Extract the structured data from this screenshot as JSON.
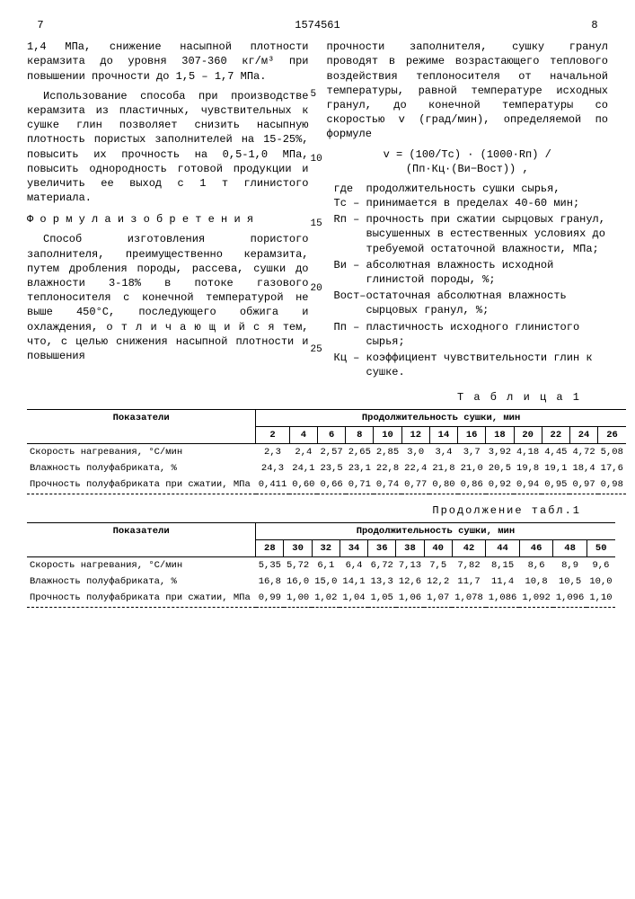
{
  "header": {
    "page_left": "7",
    "doc_number": "1574561",
    "page_right": "8"
  },
  "left_col": {
    "p1": "1,4 МПа, снижение насыпной плотности керамзита до уровня 307-360 кг/м³ при повышении прочности до 1,5 – 1,7 МПа.",
    "p2": "Использование способа при производстве керамзита из пластичных, чувствительных к сушке глин позволяет снизить насыпную плотность пористых заполнителей на 15-25%, повысить их прочность на 0,5-1,0 МПа, повысить однородность готовой продукции и увеличить ее выход с 1 т глинистого материала.",
    "formula_title": "Ф о р м у л а  и з о б р е т е н и я",
    "p3": "Способ изготовления пористого заполнителя, преимущественно керамзита, путем дробления породы, рассева, сушки до влажности 3-18% в потоке газового теплоносителя с конечной температурой не выше 450°С, последующего обжига и охлаждения, о т л и ч а ю щ и й с я  тем, что, с целью снижения насыпной плотности и повышения",
    "line_nums": [
      "5",
      "10",
      "15",
      "20",
      "25"
    ]
  },
  "right_col": {
    "p1": "прочности заполнителя, сушку гранул проводят в режиме возрастающего теплового воздействия теплоносителя от начальной температуры, равной температуре исходных гранул, до конечной температуры со скоростью v (град/мин), определяемой по формуле",
    "formula": "v = (100/Tс) · (1000·Rп) / (Пп·Кц·(Ви−Вост)) ,",
    "defs": [
      {
        "sym": "где Тс –",
        "txt": "продолжительность сушки сырья, принимается в пределах 40-60 мин;"
      },
      {
        "sym": "Rп –",
        "txt": "прочность при сжатии сырцовых гранул, высушенных в естественных условиях до требуемой остаточной влажности, МПа;"
      },
      {
        "sym": "Ви –",
        "txt": "абсолютная влажность исходной глинистой породы, %;"
      },
      {
        "sym": "Вост–",
        "txt": "остаточная абсолютная влажность сырцовых гранул, %;"
      },
      {
        "sym": "Пп –",
        "txt": "пластичность исходного глинистого сырья;"
      },
      {
        "sym": "Кц –",
        "txt": "коэффициент чувствительности глин к сушке."
      }
    ]
  },
  "table1": {
    "caption": "Т а б л и ц а 1",
    "header_main": "Продолжительность сушки, мин",
    "col_label": "Показатели",
    "cols": [
      "2",
      "4",
      "6",
      "8",
      "10",
      "12",
      "14",
      "16",
      "18",
      "20",
      "22",
      "24",
      "26"
    ],
    "rows": [
      {
        "label": "Скорость нагревания, °С/мин",
        "vals": [
          "2,3",
          "2,4",
          "2,57",
          "2,65",
          "2,85",
          "3,0",
          "3,4",
          "3,7",
          "3,92",
          "4,18",
          "4,45",
          "4,72",
          "5,08"
        ]
      },
      {
        "label": "Влажность полуфабриката, %",
        "vals": [
          "24,3",
          "24,1",
          "23,5",
          "23,1",
          "22,8",
          "22,4",
          "21,8",
          "21,0",
          "20,5",
          "19,8",
          "19,1",
          "18,4",
          "17,6"
        ]
      },
      {
        "label": "Прочность полуфабриката при сжатии, МПа",
        "vals": [
          "0,411",
          "0,60",
          "0,66",
          "0,71",
          "0,74",
          "0,77",
          "0,80",
          "0,86",
          "0,92",
          "0,94",
          "0,95",
          "0,97",
          "0,98"
        ]
      }
    ]
  },
  "table2": {
    "caption": "Продолжение табл.1",
    "header_main": "Продолжительность сушки, мин",
    "col_label": "Показатели",
    "cols": [
      "28",
      "30",
      "32",
      "34",
      "36",
      "38",
      "40",
      "42",
      "44",
      "46",
      "48",
      "50"
    ],
    "rows": [
      {
        "label": "Скорость нагревания, °С/мин",
        "vals": [
          "5,35",
          "5,72",
          "6,1",
          "6,4",
          "6,72",
          "7,13",
          "7,5",
          "7,82",
          "8,15",
          "8,6",
          "8,9",
          "9,6"
        ]
      },
      {
        "label": "Влажность полуфабриката, %",
        "vals": [
          "16,8",
          "16,0",
          "15,0",
          "14,1",
          "13,3",
          "12,6",
          "12,2",
          "11,7",
          "11,4",
          "10,8",
          "10,5",
          "10,0"
        ]
      },
      {
        "label": "Прочность полуфабриката при сжатии, МПа",
        "vals": [
          "0,99",
          "1,00",
          "1,02",
          "1,04",
          "1,05",
          "1,06",
          "1,07",
          "1,078",
          "1,086",
          "1,092",
          "1,096",
          "1,10"
        ]
      }
    ]
  }
}
